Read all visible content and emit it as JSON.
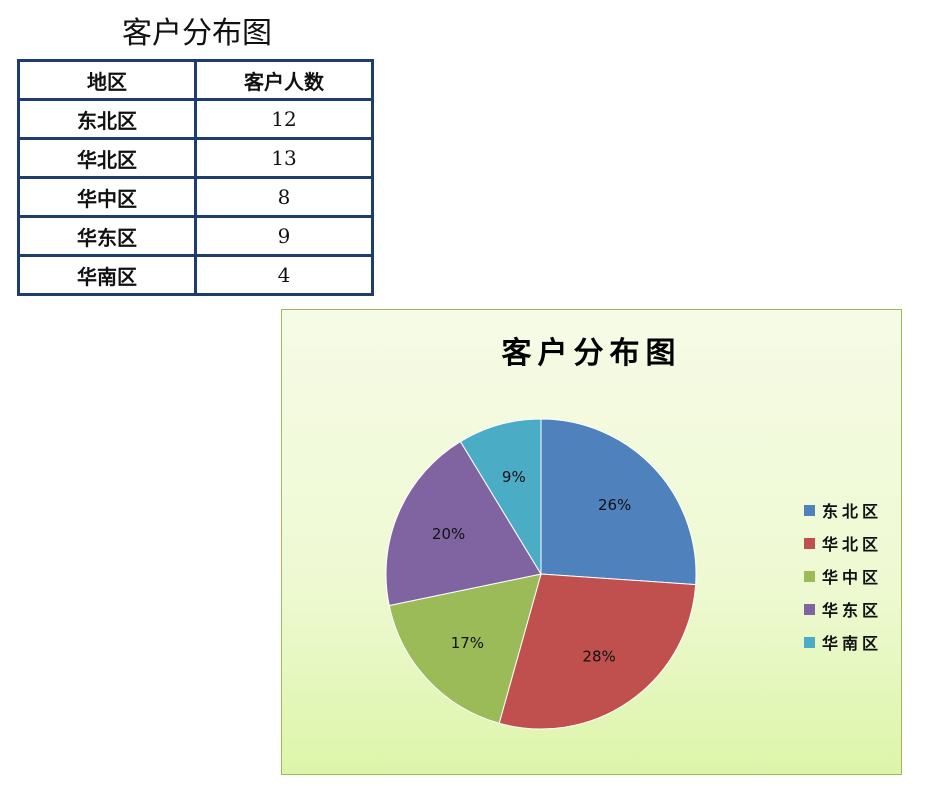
{
  "table": {
    "title": "客户分布图",
    "headers": [
      "地区",
      "客户人数"
    ],
    "rows": [
      [
        "东北区",
        "12"
      ],
      [
        "华北区",
        "13"
      ],
      [
        "华中区",
        "8"
      ],
      [
        "华东区",
        "9"
      ],
      [
        "华南区",
        "4"
      ]
    ]
  },
  "chart_data": {
    "type": "pie",
    "title": "客户分布图",
    "categories": [
      "东北区",
      "华北区",
      "华中区",
      "华东区",
      "华南区"
    ],
    "values": [
      12,
      13,
      8,
      9,
      4
    ],
    "labels": [
      "26%",
      "28%",
      "17%",
      "20%",
      "9%"
    ],
    "colors": [
      "#4f81bd",
      "#c0504d",
      "#9bbb59",
      "#8064a2",
      "#4bacc6"
    ],
    "legend": "right"
  }
}
